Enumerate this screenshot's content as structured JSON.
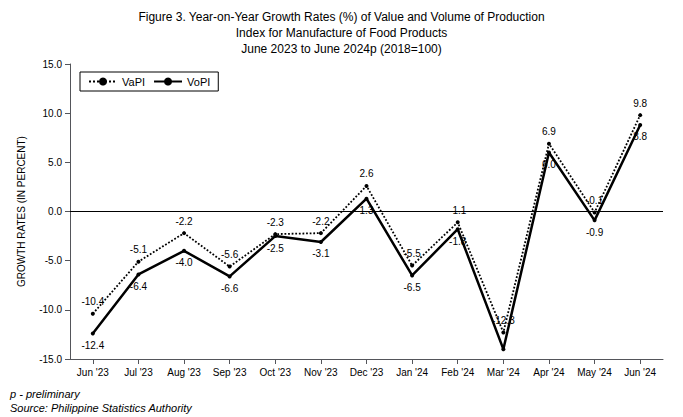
{
  "chart_data": {
    "type": "line",
    "title": [
      "Figure 3. Year-on-Year Growth Rates (%) of Value and Volume of Production",
      "Index for Manufacture of Food Products",
      "June 2023 to June 2024p (2018=100)"
    ],
    "y_label": "GROWTH RATES (IN PERCENT)",
    "annotations": [
      "p - preliminary",
      "Source: Philippine Statistics Authority"
    ],
    "categories": [
      "Jun '23",
      "Jul '23",
      "Aug '23",
      "Sep '23",
      "Oct '23",
      "Nov '23",
      "Dec '23",
      "Jan '24",
      "Feb '24",
      "Mar '24",
      "Apr '24",
      "May '24",
      "Jun '24"
    ],
    "series": [
      {
        "name": "VaPI",
        "color": "#000000",
        "line_style": "dotted",
        "marker": "circle",
        "values": [
          -10.4,
          -5.1,
          -2.2,
          -5.6,
          -2.3,
          -2.2,
          2.6,
          -5.5,
          -1.1,
          -12.3,
          6.9,
          -0.1,
          9.8
        ],
        "value_labels": [
          "-10.4",
          "-5.1",
          "-2.2",
          "-5.6",
          "-2.3",
          "-2.2",
          "2.6",
          "-5.5",
          "-1.1",
          "-12.3",
          "6.9",
          "-0.1",
          "9.8"
        ]
      },
      {
        "name": "VoPI",
        "color": "#000000",
        "line_style": "solid",
        "marker": "circle",
        "values": [
          -12.4,
          -6.4,
          -4.0,
          -6.6,
          -2.5,
          -3.1,
          1.3,
          -6.5,
          -1.8,
          -14.0,
          6.0,
          -0.9,
          8.8
        ],
        "value_labels": [
          "-12.4",
          "-6.4",
          "-4.0",
          "-6.6",
          "-2.5",
          "-3.1",
          "1.3",
          "-6.5",
          "-1.8",
          null,
          "6.0",
          "-0.9",
          "8.8"
        ]
      }
    ],
    "ylim": [
      -15.0,
      15.0
    ],
    "yticks": [
      {
        "value": -15.0,
        "label": "-15.0"
      },
      {
        "value": -10.0,
        "label": "-10.0"
      },
      {
        "value": -5.0,
        "label": "-5.0"
      },
      {
        "value": 0.0,
        "label": "0.0"
      },
      {
        "value": 5.0,
        "label": "5.0"
      },
      {
        "value": 10.0,
        "label": "10.0"
      },
      {
        "value": 15.0,
        "label": "15.0"
      }
    ],
    "data_labels": true,
    "grid": false,
    "legend": "upper left"
  }
}
